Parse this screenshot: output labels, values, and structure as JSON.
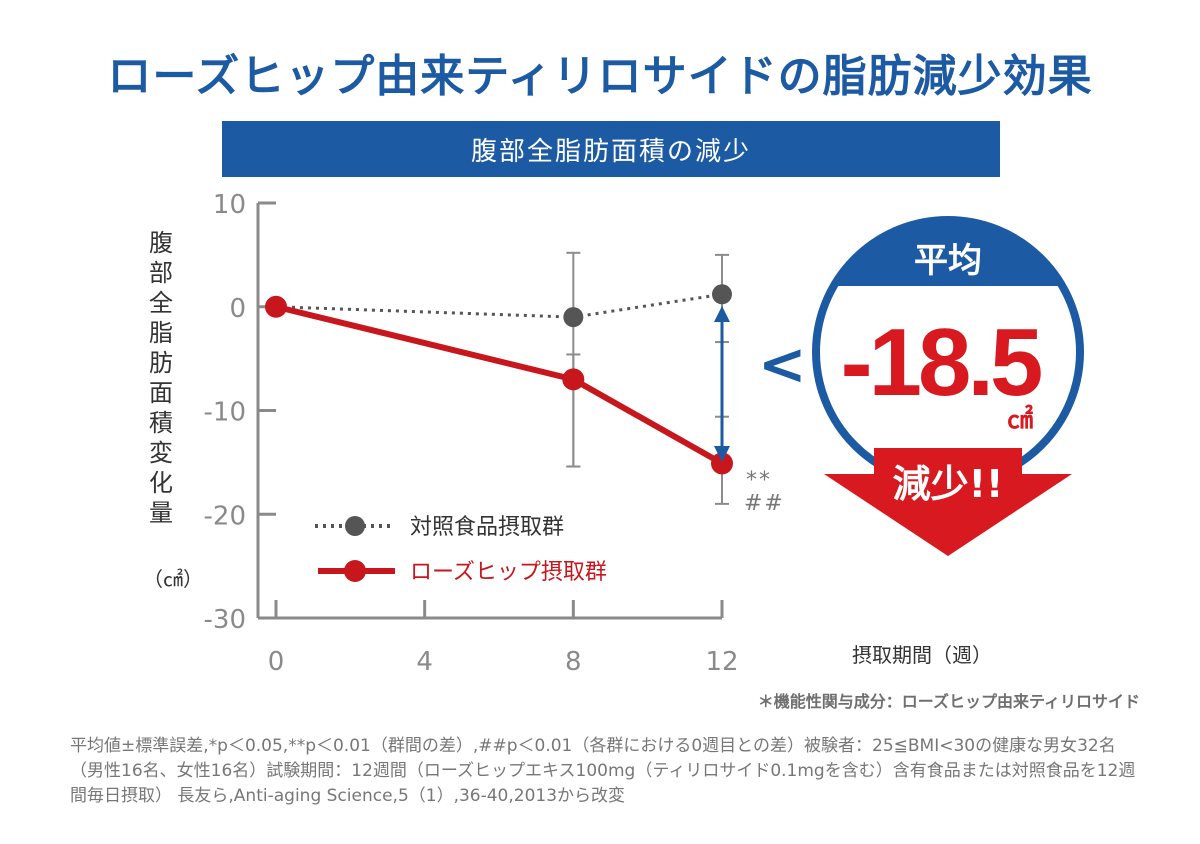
{
  "title": "ローズヒップ由来ティリロサイドの脂肪減少効果",
  "subtitle": "腹部全脂肪面積の減少",
  "ylabel": "腹部全脂肪面積変化量",
  "ylabel_unit": "（㎠）",
  "xlabel": "摂取期間（週）",
  "significance": [
    "**",
    "##"
  ],
  "badge": {
    "top_label": "平均",
    "value": "-18.5",
    "unit": "㎠",
    "comparator": "<",
    "arrow_label": "減少!!"
  },
  "footnote_ingredient": "＊機能性関与成分：ローズヒップ由来ティリロサイド",
  "footnote": "平均値±標準誤差,*p＜0.05,**p＜0.01（群間の差）,##p＜0.01（各群における0週目との差）被験者：25≦BMI<30の健康な男女32名（男性16名、女性16名）試験期間：12週間（ローズヒップエキス100mg（ティリロサイド0.1mgを含む）含有食品または対照食品を12週間毎日摂取） 長友ら,Anti-aging Science,5（1）,36-40,2013から改変",
  "colors": {
    "brand_blue": "#1c5aa3",
    "red": "#c8161d",
    "gray_series": "#555555",
    "axis": "#8a8a8a"
  },
  "chart_data": {
    "type": "line",
    "x": [
      0,
      8,
      12
    ],
    "x_ticks": [
      "0",
      "4",
      "8",
      "12"
    ],
    "y_ticks": [
      "10",
      "0",
      "-10",
      "-20",
      "-30"
    ],
    "ylim": [
      -30,
      10
    ],
    "xlim": [
      0,
      12
    ],
    "series": [
      {
        "name": "対照食品摂取群",
        "style": "dotted",
        "values": [
          0,
          -1,
          1.2
        ],
        "error_low": [
          0,
          -15.4,
          -3.4
        ],
        "error_high": [
          0,
          5.2,
          5.0
        ]
      },
      {
        "name": "ローズヒップ摂取群",
        "style": "solid",
        "values": [
          0,
          -7,
          -15.1
        ],
        "error_low": [
          0,
          -15.4,
          -19.0
        ],
        "error_high": [
          0,
          -4.6,
          -10.6
        ]
      }
    ]
  }
}
